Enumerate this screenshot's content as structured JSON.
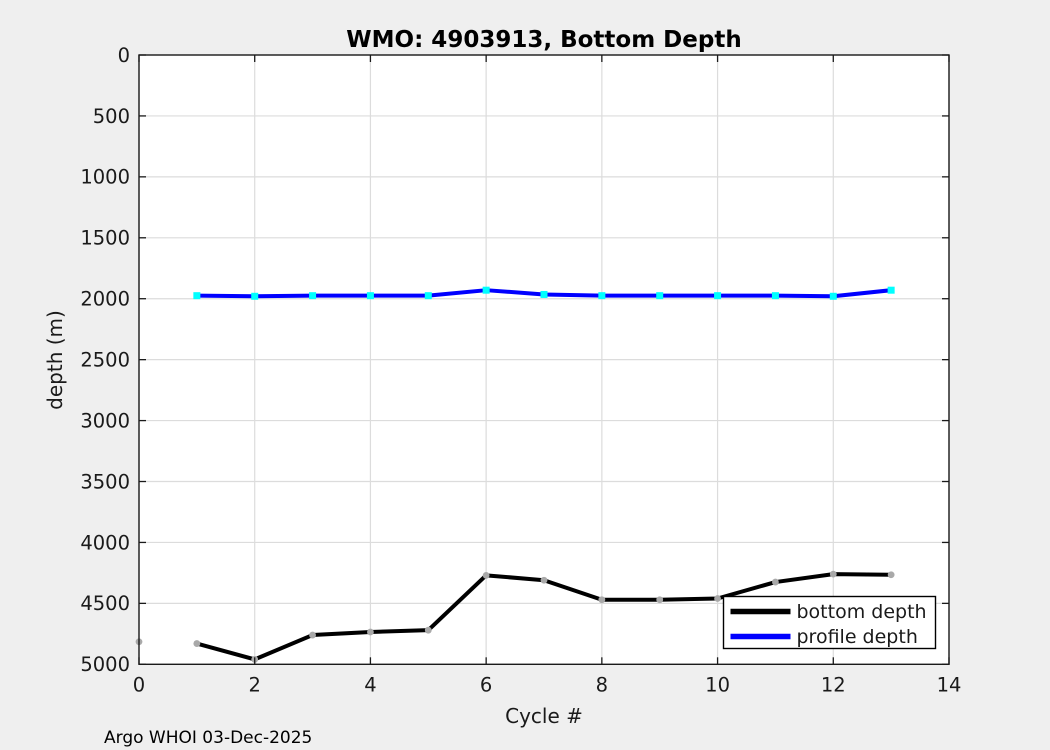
{
  "window": {
    "background_color": "#efefef",
    "plot_background_color": "#ffffff",
    "grid_color": "#dcdcdc",
    "axis_color": "#1a1a1a"
  },
  "footer": "Argo WHOI 03-Dec-2025",
  "chart_data": {
    "type": "line",
    "title": "WMO: 4903913, Bottom Depth",
    "xlabel": "Cycle #",
    "ylabel": "depth (m)",
    "xlim": [
      0,
      14
    ],
    "ylim": [
      0,
      5000
    ],
    "y_axis_reversed": true,
    "grid": true,
    "x_ticks": [
      0,
      2,
      4,
      6,
      8,
      10,
      12,
      14
    ],
    "y_ticks": [
      0,
      500,
      1000,
      1500,
      2000,
      2500,
      3000,
      3500,
      4000,
      4500,
      5000
    ],
    "legend": {
      "position": "bottom-right",
      "entries": [
        "bottom depth",
        "profile depth"
      ]
    },
    "series": [
      {
        "name": "bottom depth",
        "color": "#000000",
        "marker": "circle",
        "marker_color": "#a9a9a9",
        "x": [
          1,
          2,
          3,
          4,
          5,
          6,
          7,
          8,
          9,
          10,
          11,
          12,
          13
        ],
        "y": [
          4830,
          4960,
          4760,
          4735,
          4720,
          4270,
          4310,
          4470,
          4470,
          4460,
          4325,
          4260,
          4265
        ],
        "isolated_points": [
          {
            "x": 0,
            "y": 4815
          }
        ]
      },
      {
        "name": "profile depth",
        "color": "#0000ff",
        "marker": "square",
        "marker_color": "#00ffff",
        "x": [
          1,
          2,
          3,
          4,
          5,
          6,
          7,
          8,
          9,
          10,
          11,
          12,
          13
        ],
        "y": [
          1975,
          1980,
          1975,
          1975,
          1975,
          1930,
          1965,
          1975,
          1975,
          1975,
          1975,
          1980,
          1930
        ]
      }
    ]
  }
}
